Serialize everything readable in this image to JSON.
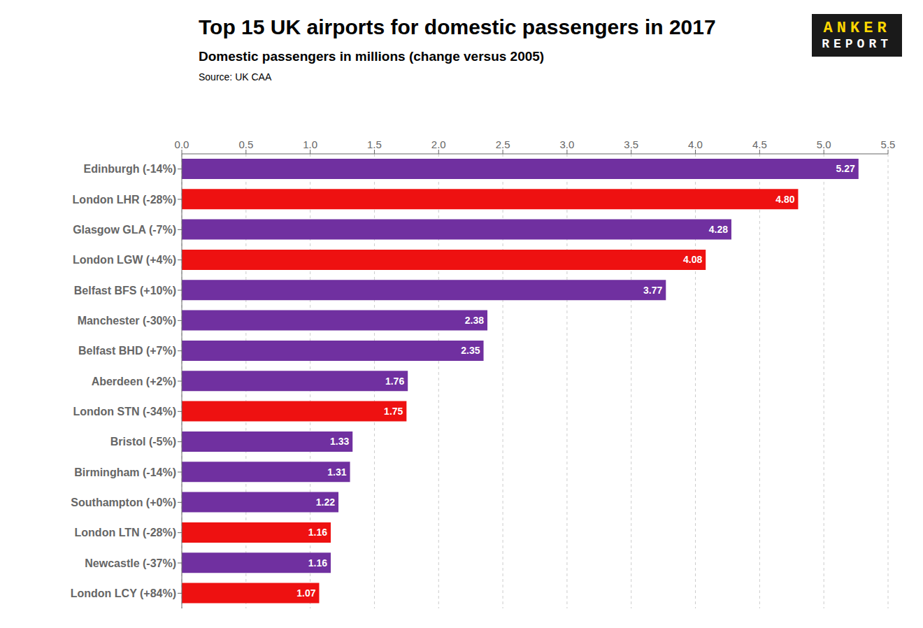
{
  "chart_data": {
    "type": "bar",
    "orientation": "horizontal",
    "title": "Top 15 UK airports for domestic passengers in 2017",
    "subtitle": "Domestic passengers in millions (change versus 2005)",
    "source": "Source: UK CAA",
    "annotations": [
      "ANKER",
      "REPORT"
    ],
    "categories": [
      "Edinburgh (-14%)",
      "London LHR (-28%)",
      "Glasgow GLA (-7%)",
      "London LGW (+4%)",
      "Belfast BFS (+10%)",
      "Manchester (-30%)",
      "Belfast BHD (+7%)",
      "Aberdeen (+2%)",
      "London STN (-34%)",
      "Bristol (-5%)",
      "Birmingham (-14%)",
      "Southampton (+0%)",
      "London LTN (-28%)",
      "Newcastle (-37%)",
      "London LCY (+84%)"
    ],
    "values": [
      5.27,
      4.8,
      4.28,
      4.08,
      3.77,
      2.38,
      2.35,
      1.76,
      1.75,
      1.33,
      1.31,
      1.22,
      1.16,
      1.16,
      1.07
    ],
    "value_labels": [
      "5.27",
      "4.80",
      "4.28",
      "4.08",
      "3.77",
      "2.38",
      "2.35",
      "1.76",
      "1.75",
      "1.33",
      "1.31",
      "1.22",
      "1.16",
      "1.16",
      "1.07"
    ],
    "colors": [
      "#7030A0",
      "#ee1111",
      "#7030A0",
      "#ee1111",
      "#7030A0",
      "#7030A0",
      "#7030A0",
      "#7030A0",
      "#ee1111",
      "#7030A0",
      "#7030A0",
      "#7030A0",
      "#ee1111",
      "#7030A0",
      "#ee1111"
    ],
    "xlim": [
      0,
      5.5
    ],
    "xticks": [
      {
        "value": 0,
        "label": "0.0"
      },
      0.5,
      {
        "value": 1,
        "label": "1.0"
      },
      1.5,
      {
        "value": 2,
        "label": "2.0"
      },
      2.5,
      {
        "value": 3,
        "label": "3.0"
      },
      3.5,
      {
        "value": 4,
        "label": "4.0"
      },
      4.5,
      {
        "value": 5,
        "label": "5.0"
      },
      5.5
    ],
    "grid": true,
    "data_labels": true
  }
}
